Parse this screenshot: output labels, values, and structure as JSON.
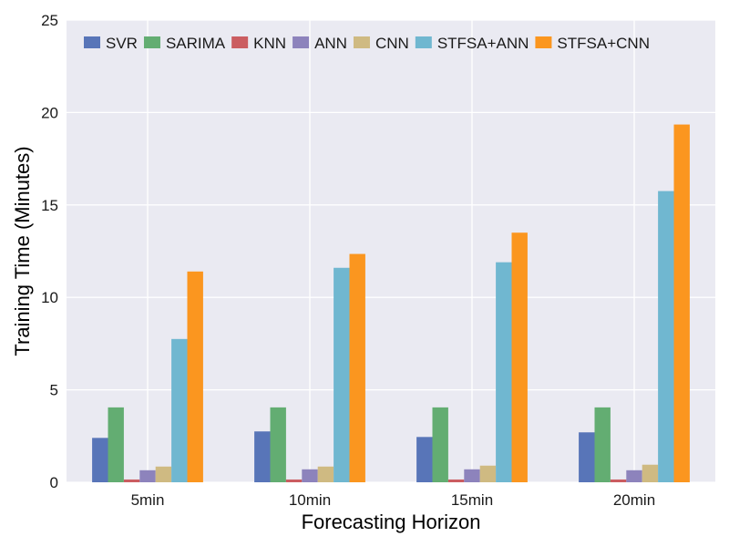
{
  "chart_data": {
    "type": "bar",
    "title": "",
    "xlabel": "Forecasting Horizon",
    "ylabel": "Training Time (Minutes)",
    "ylim": [
      0,
      25
    ],
    "yticks": [
      "0",
      "5",
      "10",
      "15",
      "20",
      "25"
    ],
    "grid": true,
    "legend_position": "top",
    "categories": [
      "5min",
      "10min",
      "15min",
      "20min"
    ],
    "series": [
      {
        "name": "SVR",
        "color": "#5875b8",
        "values": [
          2.4,
          2.75,
          2.45,
          2.7
        ]
      },
      {
        "name": "SARIMA",
        "color": "#63ad72",
        "values": [
          4.05,
          4.05,
          4.05,
          4.05
        ]
      },
      {
        "name": "KNN",
        "color": "#cb5d61",
        "values": [
          0.15,
          0.15,
          0.15,
          0.15
        ]
      },
      {
        "name": "ANN",
        "color": "#8d83bc",
        "values": [
          0.65,
          0.7,
          0.7,
          0.65
        ]
      },
      {
        "name": "CNN",
        "color": "#cfba82",
        "values": [
          0.85,
          0.85,
          0.9,
          0.95
        ]
      },
      {
        "name": "STFSA+ANN",
        "color": "#70b7d0",
        "values": [
          7.75,
          11.6,
          11.9,
          15.75
        ]
      },
      {
        "name": "STFSA+CNN",
        "color": "#fb961f",
        "values": [
          11.4,
          12.35,
          13.5,
          19.35
        ]
      }
    ]
  }
}
